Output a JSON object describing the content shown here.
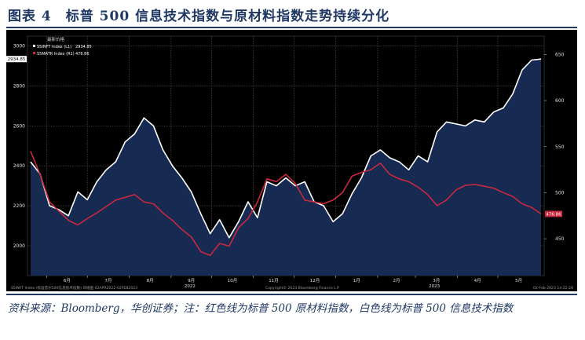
{
  "figure": {
    "title": "图表 4　标普 500 信息技术指数与原材料指数走势持续分化",
    "source_note": "资料来源：Bloomberg，华创证券；注：红色线为标普 500 原材料指数，白色线为标普 500 信息技术指数"
  },
  "chart_data": {
    "type": "line",
    "title": "",
    "xlabel": "",
    "ylabel": "",
    "x": [
      "2022-05-20",
      "2022-05-27",
      "2022-06-03",
      "2022-06-10",
      "2022-06-17",
      "2022-06-24",
      "2022-07-01",
      "2022-07-08",
      "2022-07-15",
      "2022-07-22",
      "2022-07-29",
      "2022-08-05",
      "2022-08-12",
      "2022-08-19",
      "2022-08-26",
      "2022-09-02",
      "2022-09-09",
      "2022-09-16",
      "2022-09-23",
      "2022-09-30",
      "2022-10-07",
      "2022-10-14",
      "2022-10-21",
      "2022-10-28",
      "2022-11-04",
      "2022-11-11",
      "2022-11-18",
      "2022-11-25",
      "2022-12-02",
      "2022-12-09",
      "2022-12-16",
      "2022-12-23",
      "2022-12-30",
      "2023-01-06",
      "2023-01-13",
      "2023-01-20",
      "2023-01-27",
      "2023-02-03",
      "2023-02-10",
      "2023-02-17",
      "2023-02-24",
      "2023-03-03",
      "2023-03-10",
      "2023-03-17",
      "2023-03-24",
      "2023-03-31",
      "2023-04-07",
      "2023-04-14",
      "2023-04-21",
      "2023-04-28",
      "2023-05-05",
      "2023-05-12",
      "2023-05-19",
      "2023-05-26",
      "2023-06-02"
    ],
    "x_tick_labels": [
      "6月",
      "7月",
      "8月",
      "9月",
      "10月",
      "11月",
      "12月",
      "1月",
      "2月",
      "3月",
      "4月",
      "5月"
    ],
    "x_year_labels": [
      "2022",
      "2023"
    ],
    "y_left": {
      "ticks": [
        2000,
        2200,
        2400,
        2600,
        2800,
        3000
      ],
      "range": [
        1850,
        3050
      ]
    },
    "y_right": {
      "ticks": [
        450,
        500,
        550,
        600,
        650
      ],
      "range": [
        410,
        670
      ]
    },
    "legend_header": "最新价格",
    "series": [
      {
        "name": "S5INFT Index  (L1)",
        "axis": "left",
        "color": "#ffffff",
        "fill": "#162a52",
        "last_label": "2934.85",
        "values": [
          2420,
          2360,
          2200,
          2180,
          2150,
          2270,
          2230,
          2320,
          2380,
          2420,
          2520,
          2560,
          2640,
          2600,
          2480,
          2400,
          2340,
          2270,
          2160,
          2060,
          2130,
          2040,
          2120,
          2220,
          2140,
          2320,
          2300,
          2340,
          2300,
          2320,
          2220,
          2200,
          2120,
          2160,
          2260,
          2340,
          2450,
          2480,
          2440,
          2420,
          2380,
          2450,
          2420,
          2570,
          2620,
          2610,
          2600,
          2630,
          2620,
          2670,
          2690,
          2760,
          2880,
          2930,
          2935
        ]
      },
      {
        "name": "S5MATR Index  (R1)",
        "axis": "right",
        "color": "#c8283f",
        "last_label": "476.86",
        "values": [
          545,
          520,
          490,
          480,
          470,
          465,
          472,
          478,
          485,
          492,
          495,
          498,
          490,
          488,
          478,
          470,
          460,
          452,
          436,
          432,
          445,
          442,
          462,
          472,
          490,
          515,
          512,
          520,
          510,
          492,
          490,
          488,
          492,
          500,
          518,
          522,
          525,
          532,
          520,
          515,
          512,
          506,
          498,
          486,
          492,
          503,
          508,
          509,
          507,
          505,
          500,
          496,
          488,
          484,
          477
        ]
      }
    ],
    "grid": true,
    "legend_position": "top-left",
    "footer_left": "S5INFT Index (标准普尔500信息技术指数) 日线图 02APR2022-02FEB2023",
    "footer_center": "Copyright© 2023 Bloomberg Finance L.P.",
    "footer_right": "02-Feb-2023 14:22:28"
  }
}
